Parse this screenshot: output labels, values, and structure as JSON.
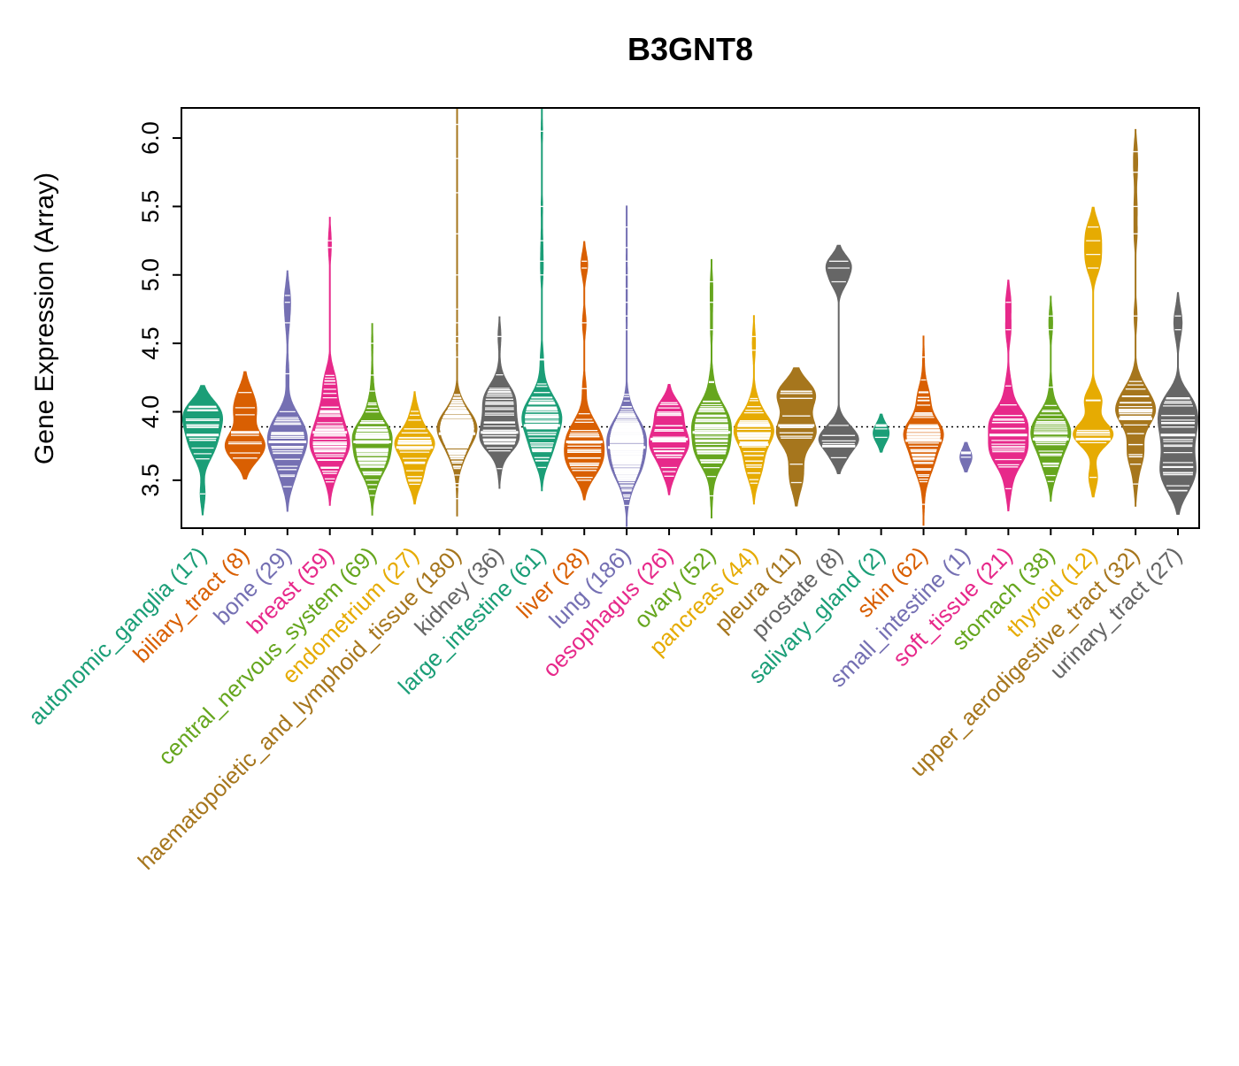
{
  "chart_data": {
    "type": "violin",
    "title": "B3GNT8",
    "ylabel": "Gene Expression (Array)",
    "ylim": [
      3.15,
      6.22
    ],
    "yticks": [
      3.5,
      4.0,
      4.5,
      5.0,
      5.5,
      6.0
    ],
    "hline": 3.89,
    "hline_style": "dotted",
    "legend": "none",
    "grid": false,
    "palette": [
      "#1B9E77",
      "#D95F02",
      "#7570B3",
      "#E7298A",
      "#66A61E",
      "#E6AB02",
      "#A6761D",
      "#666666"
    ],
    "categories": [
      {
        "name": "autonomic_ganglia",
        "n": 17,
        "color": "#1B9E77",
        "median": 3.83,
        "sigma": 0.17,
        "lo": 3.38,
        "hi": 4.3,
        "outliers": []
      },
      {
        "name": "biliary_tract",
        "n": 8,
        "color": "#D95F02",
        "median": 3.85,
        "sigma": 0.17,
        "lo": 3.5,
        "hi": 4.45,
        "outliers": []
      },
      {
        "name": "bone",
        "n": 29,
        "color": "#7570B3",
        "median": 3.78,
        "sigma": 0.2,
        "lo": 3.42,
        "hi": 4.5,
        "outliers": [
          4.65,
          4.8,
          4.85
        ]
      },
      {
        "name": "breast",
        "n": 59,
        "color": "#E7298A",
        "median": 3.85,
        "sigma": 0.19,
        "lo": 3.36,
        "hi": 4.5,
        "outliers": [
          5.2,
          5.25
        ]
      },
      {
        "name": "central_nervous_system",
        "n": 69,
        "color": "#66A61E",
        "median": 3.78,
        "sigma": 0.16,
        "lo": 3.36,
        "hi": 4.45,
        "outliers": [
          4.5
        ]
      },
      {
        "name": "endometrium",
        "n": 27,
        "color": "#E6AB02",
        "median": 3.74,
        "sigma": 0.16,
        "lo": 3.36,
        "hi": 4.3,
        "outliers": []
      },
      {
        "name": "haematopoietic_and_lymphoid_tissue",
        "n": 180,
        "color": "#A6761D",
        "median": 3.84,
        "sigma": 0.14,
        "lo": 3.3,
        "hi": 4.35,
        "outliers": [
          4.4,
          4.5,
          4.55,
          4.65,
          4.75,
          5.0,
          5.3,
          5.6,
          5.85,
          6.1
        ]
      },
      {
        "name": "kidney",
        "n": 36,
        "color": "#666666",
        "median": 3.85,
        "sigma": 0.16,
        "lo": 3.45,
        "hi": 4.5,
        "outliers": [
          4.55
        ]
      },
      {
        "name": "large_intestine",
        "n": 61,
        "color": "#1B9E77",
        "median": 3.9,
        "sigma": 0.19,
        "lo": 3.3,
        "hi": 4.85,
        "outliers": [
          5.0,
          5.1,
          5.25,
          5.5,
          6.05
        ]
      },
      {
        "name": "liver",
        "n": 28,
        "color": "#D95F02",
        "median": 3.78,
        "sigma": 0.16,
        "lo": 3.42,
        "hi": 4.4,
        "outliers": [
          4.65,
          5.05,
          5.1
        ]
      },
      {
        "name": "lung",
        "n": 186,
        "color": "#7570B3",
        "median": 3.74,
        "sigma": 0.17,
        "lo": 3.3,
        "hi": 4.5,
        "outliers": [
          4.6,
          4.7,
          4.8,
          4.9,
          5.0,
          5.1,
          5.2,
          5.35
        ]
      },
      {
        "name": "oesophagus",
        "n": 26,
        "color": "#E7298A",
        "median": 3.8,
        "sigma": 0.15,
        "lo": 3.42,
        "hi": 4.3,
        "outliers": []
      },
      {
        "name": "ovary",
        "n": 52,
        "color": "#66A61E",
        "median": 3.85,
        "sigma": 0.18,
        "lo": 3.36,
        "hi": 4.45,
        "outliers": [
          4.6,
          4.8,
          4.95
        ]
      },
      {
        "name": "pancreas",
        "n": 44,
        "color": "#E6AB02",
        "median": 3.76,
        "sigma": 0.17,
        "lo": 3.4,
        "hi": 4.35,
        "outliers": [
          4.45,
          4.55
        ]
      },
      {
        "name": "pleura",
        "n": 11,
        "color": "#A6761D",
        "median": 3.9,
        "sigma": 0.19,
        "lo": 3.45,
        "hi": 4.45,
        "outliers": []
      },
      {
        "name": "prostate",
        "n": 8,
        "color": "#666666",
        "median": 3.75,
        "sigma": 0.13,
        "lo": 3.52,
        "hi": 4.0,
        "outliers": [
          4.95,
          5.05,
          5.1
        ]
      },
      {
        "name": "salivary_gland",
        "n": 2,
        "color": "#1B9E77",
        "median": 3.9,
        "sigma": 0.07,
        "lo": 3.8,
        "hi": 4.05,
        "outliers": [],
        "wf": 0.4
      },
      {
        "name": "skin",
        "n": 62,
        "color": "#D95F02",
        "median": 3.79,
        "sigma": 0.17,
        "lo": 3.3,
        "hi": 4.35,
        "outliers": [
          4.4
        ]
      },
      {
        "name": "small_intestine",
        "n": 1,
        "color": "#7570B3",
        "median": 3.7,
        "sigma": 0.05,
        "lo": 3.64,
        "hi": 3.78,
        "outliers": [],
        "wf": 0.3
      },
      {
        "name": "soft_tissue",
        "n": 21,
        "color": "#E7298A",
        "median": 3.83,
        "sigma": 0.18,
        "lo": 3.3,
        "hi": 4.45,
        "outliers": [
          4.6,
          4.8
        ]
      },
      {
        "name": "stomach",
        "n": 38,
        "color": "#66A61E",
        "median": 3.8,
        "sigma": 0.16,
        "lo": 3.42,
        "hi": 4.5,
        "outliers": [
          4.6,
          4.7
        ]
      },
      {
        "name": "thyroid",
        "n": 12,
        "color": "#E6AB02",
        "median": 3.8,
        "sigma": 0.16,
        "lo": 3.45,
        "hi": 4.3,
        "outliers": [
          5.05,
          5.15,
          5.25,
          5.35
        ]
      },
      {
        "name": "upper_aerodigestive_tract",
        "n": 32,
        "color": "#A6761D",
        "median": 3.95,
        "sigma": 0.18,
        "lo": 3.42,
        "hi": 4.5,
        "outliers": [
          4.7,
          5.3,
          5.5,
          5.75,
          5.9
        ]
      },
      {
        "name": "urinary_tract",
        "n": 27,
        "color": "#666666",
        "median": 3.83,
        "sigma": 0.19,
        "lo": 3.36,
        "hi": 4.45,
        "outliers": [
          4.6,
          4.7
        ]
      }
    ]
  }
}
